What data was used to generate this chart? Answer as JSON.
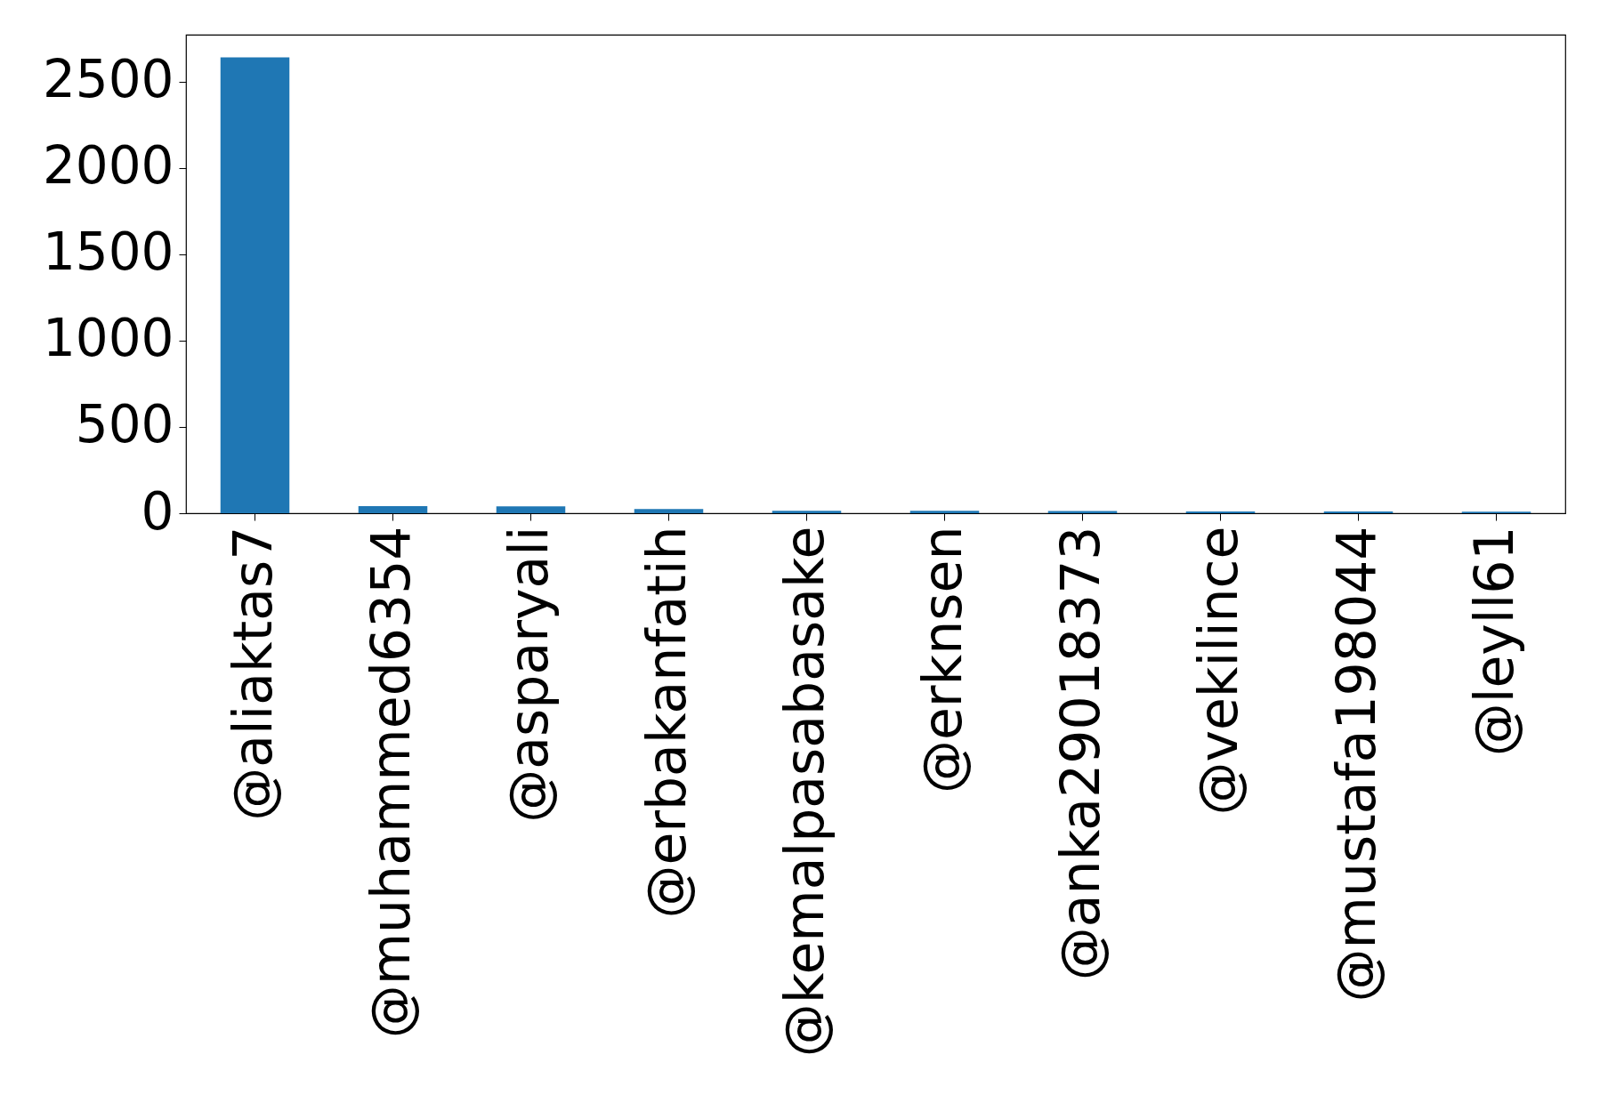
{
  "chart_data": {
    "type": "bar",
    "categories": [
      "@aliaktas7",
      "@muhammed6354",
      "@asparyali",
      "@erbakanfatih",
      "@kemalpasabasake",
      "@erknsen",
      "@anka29018373",
      "@vekilince",
      "@mustafa198044",
      "@leyll61"
    ],
    "values": [
      2640,
      41,
      40,
      24,
      14,
      14,
      13,
      10,
      10,
      9
    ],
    "color": "#1f77b4",
    "ylim": [
      0,
      2772
    ],
    "yticks": [
      0,
      500,
      1000,
      1500,
      2000,
      2500
    ],
    "grid": false
  }
}
